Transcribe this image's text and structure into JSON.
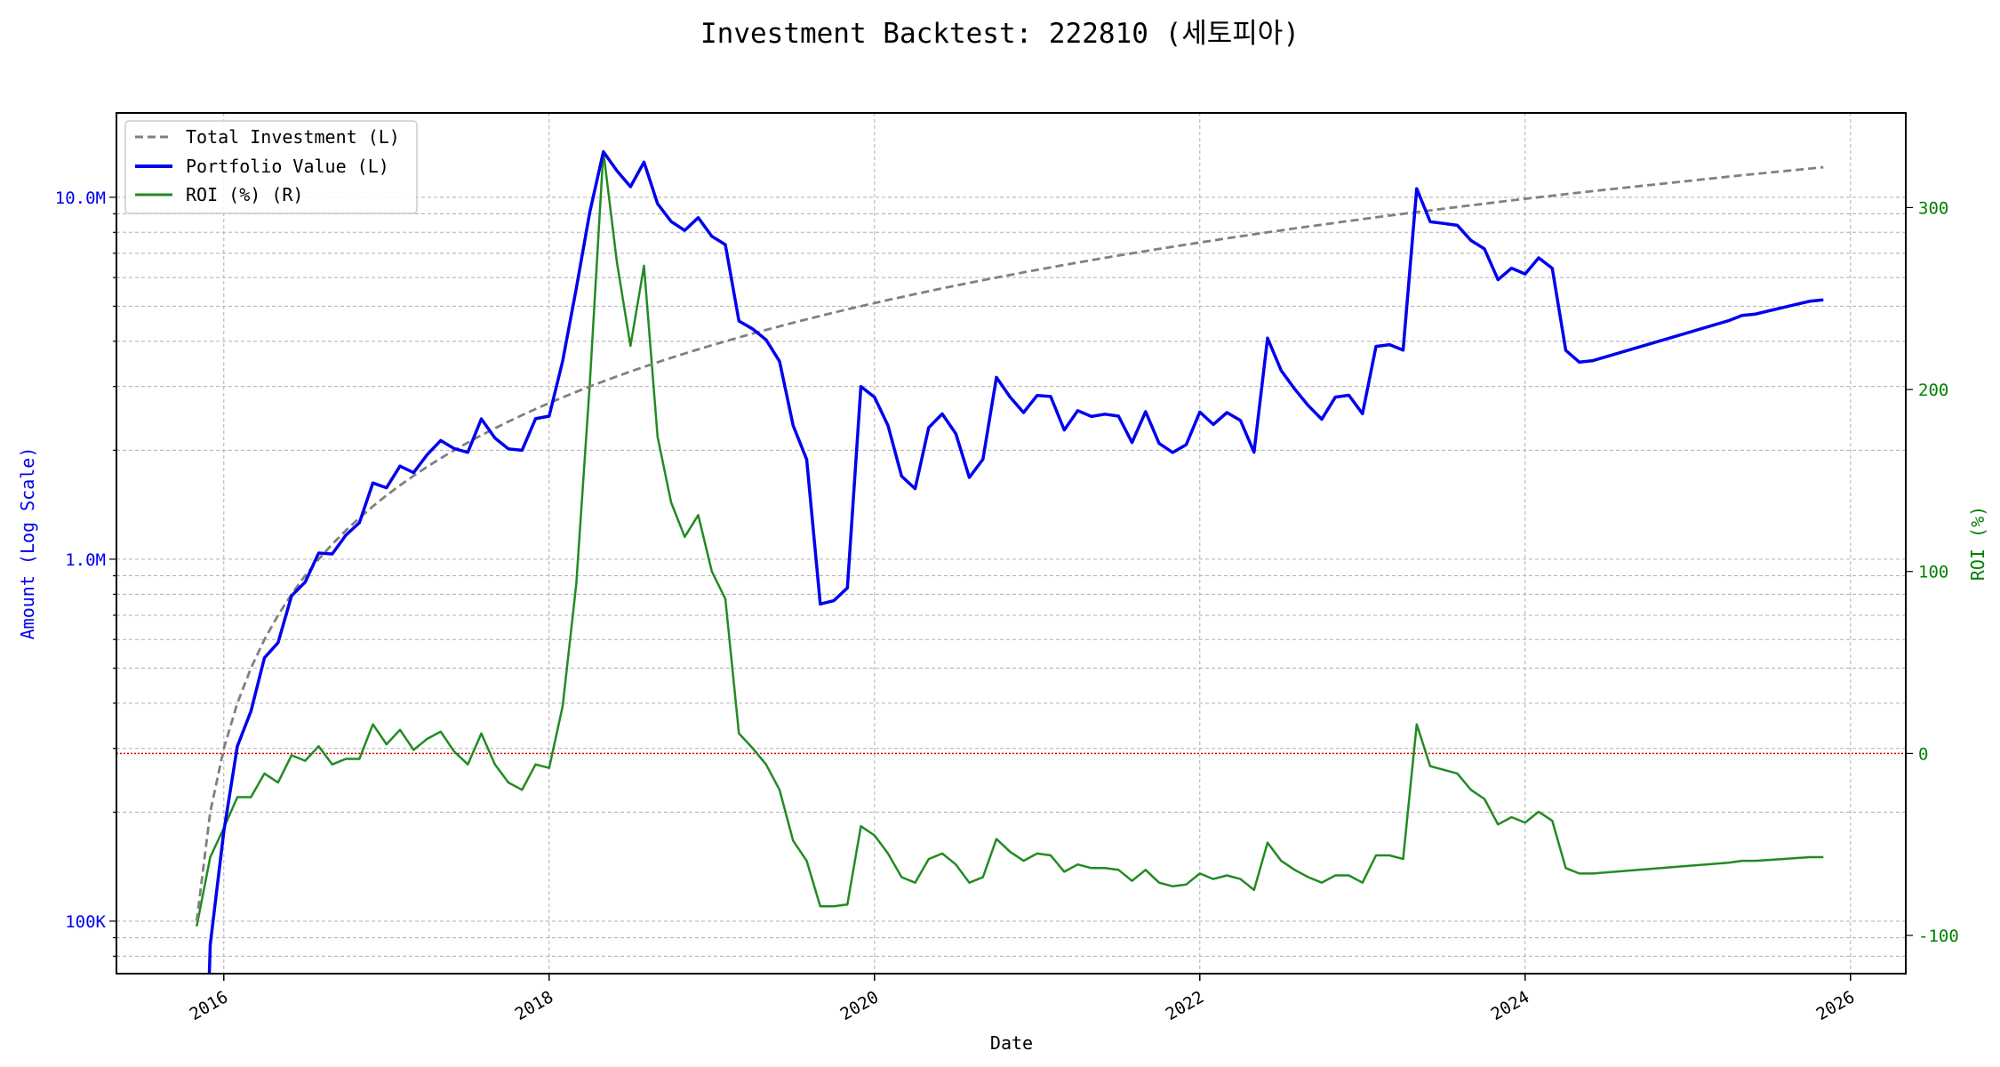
{
  "chart_data": {
    "type": "line",
    "title": "Investment Backtest: 222810 (세토피아)",
    "xlabel": "Date",
    "ylabel_left": "Amount (Log Scale)",
    "ylabel_right": "ROI (%)",
    "left_scale": "log",
    "ylim_left": [
      71600,
      17100000
    ],
    "ylim_right": [
      -121,
      352
    ],
    "xlim": [
      2015.34,
      2026.34
    ],
    "x_ticks": [
      "2016",
      "2018",
      "2020",
      "2022",
      "2024",
      "2026"
    ],
    "left_ticks": [
      {
        "value": 100000,
        "label": "100K"
      },
      {
        "value": 1000000,
        "label": "1.0M"
      },
      {
        "value": 10000000,
        "label": "10.0M"
      }
    ],
    "right_ticks": [
      {
        "value": -100,
        "label": "-100"
      },
      {
        "value": 0,
        "label": "0"
      },
      {
        "value": 100,
        "label": "100"
      },
      {
        "value": 200,
        "label": "200"
      },
      {
        "value": 300,
        "label": "300"
      }
    ],
    "grid": true,
    "legend_position": "top-left",
    "reference_line": {
      "axis": "right",
      "value": 0,
      "color": "#cc0000"
    },
    "colors": {
      "investment": "#808080",
      "portfolio": "#0000ee",
      "roi": "#228b22",
      "left_axis": "#0000ee",
      "right_axis": "#008000"
    },
    "value_unit": "M",
    "dates": [
      "2015-11",
      "2015-12",
      "2016-01",
      "2016-02",
      "2016-03",
      "2016-04",
      "2016-05",
      "2016-06",
      "2016-07",
      "2016-08",
      "2016-09",
      "2016-10",
      "2016-11",
      "2016-12",
      "2017-01",
      "2017-02",
      "2017-03",
      "2017-04",
      "2017-05",
      "2017-06",
      "2017-07",
      "2017-08",
      "2017-09",
      "2017-10",
      "2017-11",
      "2017-12",
      "2018-01",
      "2018-02",
      "2018-03",
      "2018-04",
      "2018-05",
      "2018-06",
      "2018-07",
      "2018-08",
      "2018-09",
      "2018-10",
      "2018-11",
      "2018-12",
      "2019-01",
      "2019-02",
      "2019-03",
      "2019-04",
      "2019-05",
      "2019-06",
      "2019-07",
      "2019-08",
      "2019-09",
      "2019-10",
      "2019-11",
      "2019-12",
      "2020-01",
      "2020-02",
      "2020-03",
      "2020-04",
      "2020-05",
      "2020-06",
      "2020-07",
      "2020-08",
      "2020-09",
      "2020-10",
      "2020-11",
      "2020-12",
      "2021-01",
      "2021-02",
      "2021-03",
      "2021-04",
      "2021-05",
      "2021-06",
      "2021-07",
      "2021-08",
      "2021-09",
      "2021-10",
      "2021-11",
      "2021-12",
      "2022-01",
      "2022-02",
      "2022-03",
      "2022-04",
      "2022-05",
      "2022-06",
      "2022-07",
      "2022-08",
      "2022-09",
      "2022-10",
      "2022-11",
      "2022-12",
      "2023-01",
      "2023-02",
      "2023-03",
      "2023-04",
      "2023-05",
      "2023-06",
      "2023-07",
      "2023-08",
      "2023-09",
      "2023-10",
      "2023-11",
      "2023-12",
      "2024-01",
      "2024-02",
      "2024-03",
      "2024-04",
      "2024-05",
      "2024-06",
      "2025-04",
      "2025-05",
      "2025-06",
      "2025-07",
      "2025-08",
      "2025-09",
      "2025-10",
      "2025-11"
    ],
    "series": [
      {
        "name": "Total Investment (L)",
        "axis": "left",
        "style": "dashed",
        "values": [
          0.1,
          0.2,
          0.3,
          0.4,
          0.5,
          0.6,
          0.7,
          0.8,
          0.9,
          1.0,
          1.1,
          1.2,
          1.3,
          1.4,
          1.5,
          1.6,
          1.7,
          1.8,
          1.9,
          2.0,
          2.1,
          2.2,
          2.3,
          2.4,
          2.5,
          2.6,
          2.7,
          2.8,
          2.9,
          3.0,
          3.1,
          3.2,
          3.3,
          3.4,
          3.5,
          3.6,
          3.7,
          3.8,
          3.9,
          4.0,
          4.1,
          4.2,
          4.3,
          4.4,
          4.5,
          4.6,
          4.7,
          4.8,
          4.9,
          5.0,
          5.1,
          5.2,
          5.3,
          5.4,
          5.5,
          5.6,
          5.7,
          5.8,
          5.9,
          6.0,
          6.1,
          6.2,
          6.3,
          6.4,
          6.5,
          6.6,
          6.7,
          6.8,
          6.9,
          7.0,
          7.1,
          7.2,
          7.3,
          7.4,
          7.5,
          7.6,
          7.7,
          7.8,
          7.9,
          8.0,
          8.1,
          8.2,
          8.3,
          8.4,
          8.5,
          8.6,
          8.7,
          8.8,
          8.9,
          9.0,
          9.1,
          9.2,
          9.3,
          9.4,
          9.5,
          9.6,
          9.7,
          9.8,
          9.9,
          10.0,
          10.1,
          10.2,
          10.3,
          10.4,
          11.4,
          11.5,
          11.6,
          11.7,
          11.8,
          11.9,
          12.0,
          12.1
        ]
      },
      {
        "name": "Portfolio Value (L)",
        "axis": "left",
        "style": "solid",
        "values": [
          0.005,
          0.086,
          0.177,
          0.304,
          0.38,
          0.534,
          0.588,
          0.792,
          0.864,
          1.04,
          1.034,
          1.164,
          1.261,
          1.624,
          1.575,
          1.808,
          1.734,
          1.944,
          2.128,
          2.02,
          1.974,
          2.442,
          2.162,
          2.016,
          2.0,
          2.444,
          2.484,
          3.528,
          5.597,
          9.09,
          13.36,
          11.84,
          10.69,
          12.51,
          9.59,
          8.57,
          8.1,
          8.78,
          7.8,
          7.4,
          4.55,
          4.33,
          4.04,
          3.52,
          2.34,
          1.886,
          0.752,
          0.768,
          0.833,
          3.0,
          2.805,
          2.34,
          1.696,
          1.566,
          2.31,
          2.52,
          2.223,
          1.682,
          1.888,
          3.18,
          2.806,
          2.542,
          2.835,
          2.816,
          2.275,
          2.574,
          2.479,
          2.516,
          2.484,
          2.1,
          2.556,
          2.088,
          1.971,
          2.072,
          2.55,
          2.356,
          2.541,
          2.418,
          1.975,
          4.08,
          3.321,
          2.952,
          2.656,
          2.436,
          2.805,
          2.838,
          2.523,
          3.872,
          3.916,
          3.78,
          10.56,
          8.556,
          8.463,
          8.366,
          7.6,
          7.2,
          5.917,
          6.37,
          6.138,
          6.8,
          6.363,
          3.774,
          3.502,
          3.536,
          4.56,
          4.715,
          4.756,
          4.856,
          4.956,
          5.058,
          5.16,
          5.203
        ]
      },
      {
        "name": "ROI (%) (R)",
        "axis": "right",
        "style": "solid",
        "values": [
          -95,
          -57,
          -41,
          -24,
          -24,
          -11,
          -16,
          -1,
          -4,
          4,
          -6,
          -3,
          -3,
          16,
          5,
          13,
          2,
          8,
          12,
          1,
          -6,
          11,
          -6,
          -16,
          -20,
          -6,
          -8,
          26,
          93,
          203,
          331,
          270,
          224,
          268,
          174,
          138,
          119,
          131,
          100,
          85,
          11,
          3,
          -6,
          -20,
          -48,
          -59,
          -84,
          -84,
          -83,
          -40,
          -45,
          -55,
          -68,
          -71,
          -58,
          -55,
          -61,
          -71,
          -68,
          -47,
          -54,
          -59,
          -55,
          -56,
          -65,
          -61,
          -63,
          -63,
          -64,
          -70,
          -64,
          -71,
          -73,
          -72,
          -66,
          -69,
          -67,
          -69,
          -75,
          -49,
          -59,
          -64,
          -68,
          -71,
          -67,
          -67,
          -71,
          -56,
          -56,
          -58,
          16,
          -7,
          -9,
          -11,
          -20,
          -25,
          -39,
          -35,
          -38,
          -32,
          -37,
          -63,
          -66,
          -66,
          -60,
          -59,
          -59,
          -58.5,
          -58,
          -57.5,
          -57,
          -57
        ]
      }
    ]
  }
}
